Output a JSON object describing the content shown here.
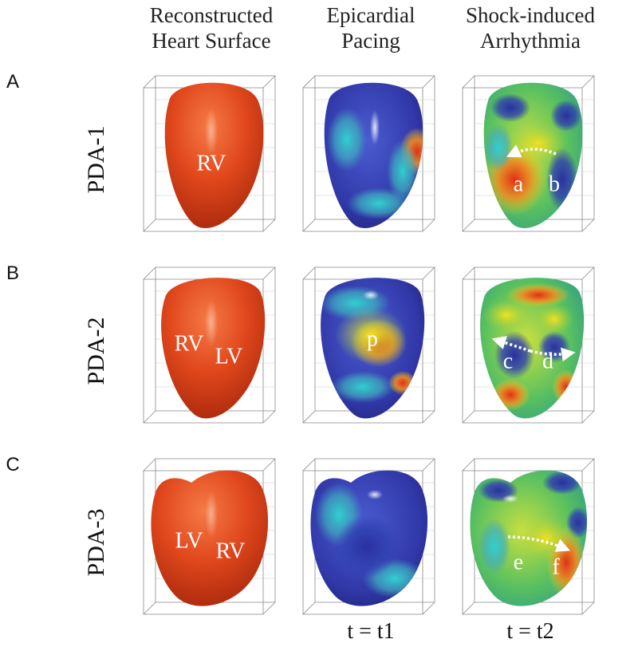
{
  "columns": [
    {
      "title_lines": [
        "Reconstructed",
        "Heart Surface"
      ]
    },
    {
      "title_lines": [
        "Epicardial",
        "Pacing"
      ]
    },
    {
      "title_lines": [
        "Shock-induced",
        "Arrhythmia"
      ]
    }
  ],
  "rows": [
    {
      "letter": "A",
      "label": "PDA-1",
      "panel_labels": [
        [
          "RV"
        ],
        [],
        [
          "a",
          "b"
        ]
      ]
    },
    {
      "letter": "B",
      "label": "PDA-2",
      "panel_labels": [
        [
          "RV",
          "LV"
        ],
        [
          "p"
        ],
        [
          "c",
          "d"
        ]
      ]
    },
    {
      "letter": "C",
      "label": "PDA-3",
      "panel_labels": [
        [
          "LV",
          "RV"
        ],
        [],
        [
          "e",
          "f"
        ]
      ]
    }
  ],
  "time_labels": [
    "t = t1",
    "t = t2"
  ]
}
